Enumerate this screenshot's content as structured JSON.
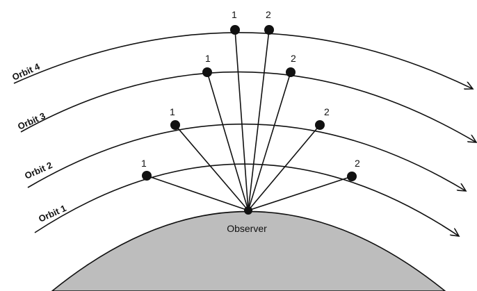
{
  "orbits": [
    {
      "label": "Orbit 1",
      "points": [
        "1",
        "2"
      ]
    },
    {
      "label": "Orbit 2",
      "points": [
        "1",
        "2"
      ]
    },
    {
      "label": "Orbit 3",
      "points": [
        "1",
        "2"
      ]
    },
    {
      "label": "Orbit 4",
      "points": [
        "1",
        "2"
      ]
    }
  ],
  "observer": "Observer"
}
